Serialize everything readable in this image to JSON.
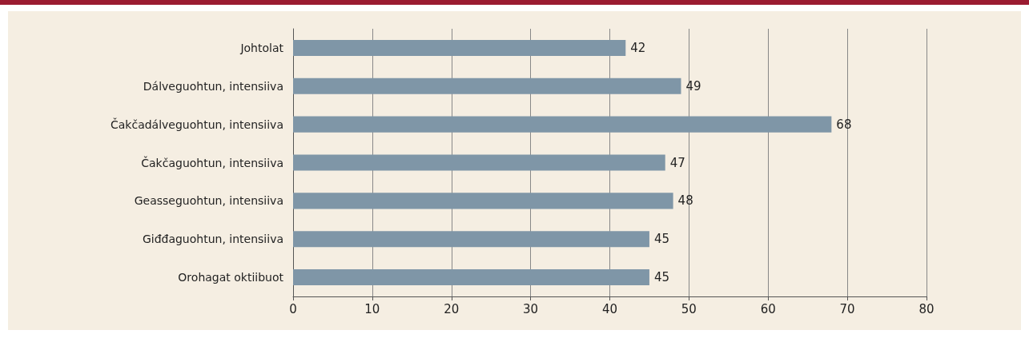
{
  "chart_data": {
    "type": "bar",
    "orientation": "horizontal",
    "categories": [
      "Johtolat",
      "Dálveguohtun, intensiiva",
      "Čakčadálveguohtun, intensiiva",
      "Čakčaguohtun, intensiiva",
      "Geasseguohtun, intensiiva",
      "Giđđaguohtun, intensiiva",
      "Orohagat oktiibuot"
    ],
    "values": [
      42,
      49,
      68,
      47,
      48,
      45,
      45
    ],
    "color": "#7f96a7",
    "xlim": [
      0,
      80
    ],
    "xticks": [
      0,
      10,
      20,
      30,
      40,
      50,
      60,
      70,
      80
    ],
    "grid": "x",
    "data_labels": true
  }
}
